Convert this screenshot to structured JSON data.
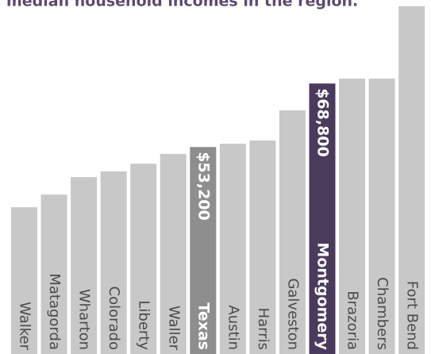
{
  "chart_data": {
    "type": "bar",
    "title": "median household incomes in the region.",
    "categories": [
      "Walker",
      "Matagorda",
      "Wharton",
      "Colorado",
      "Liberty",
      "Waller",
      "Texas",
      "Austin",
      "Harris",
      "Galveston",
      "Montgomery",
      "Brazoria",
      "Chambers",
      "Fort Bend"
    ],
    "values": [
      38400,
      41500,
      45800,
      47200,
      49100,
      51500,
      53200,
      54000,
      54800,
      62200,
      68800,
      70000,
      70000,
      87800
    ],
    "value_labels": [
      null,
      null,
      null,
      null,
      null,
      null,
      "$53,200",
      null,
      null,
      null,
      "$68,800",
      null,
      null,
      null
    ],
    "colors": [
      "#c8c8c8",
      "#c8c8c8",
      "#c8c8c8",
      "#c8c8c8",
      "#c8c8c8",
      "#c8c8c8",
      "#8e8e8e",
      "#c8c8c8",
      "#c8c8c8",
      "#c8c8c8",
      "#4a3a5c",
      "#c8c8c8",
      "#c8c8c8",
      "#c8c8c8"
    ],
    "ylim": [
      0,
      90000
    ]
  }
}
